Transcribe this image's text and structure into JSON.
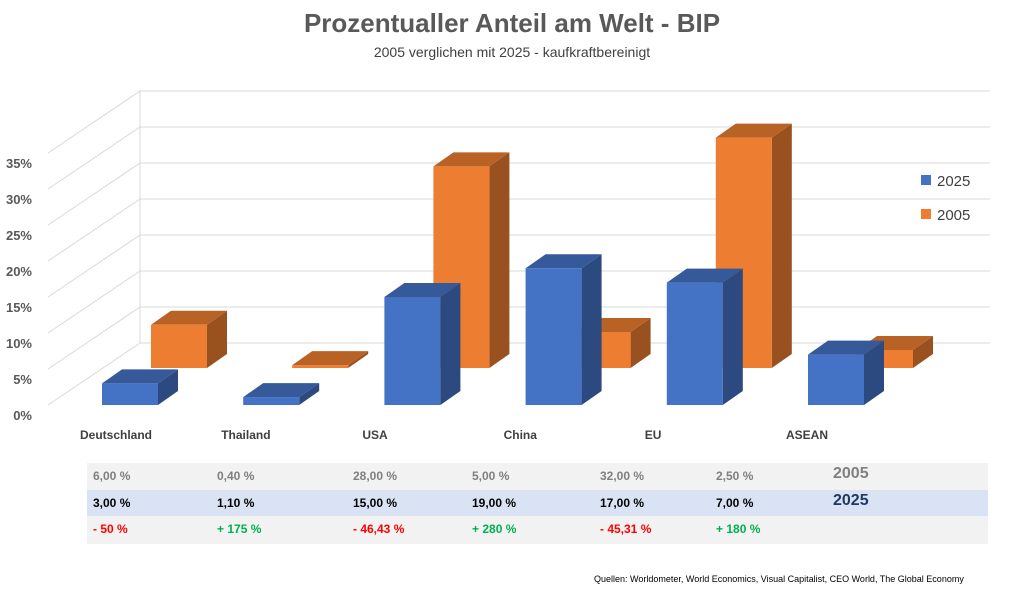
{
  "chart_data": {
    "type": "bar",
    "title": "Prozentualler Anteil am Welt - BIP",
    "subtitle": "2005 verglichen mit 2025 -  kaufkraftbereinigt",
    "categories": [
      "Deutschland",
      "Thailand",
      "USA",
      "China",
      "EU",
      "ASEAN"
    ],
    "series": [
      {
        "name": "2025",
        "color": "#4472C4",
        "values": [
          3.0,
          1.1,
          15.0,
          19.0,
          17.0,
          7.0
        ]
      },
      {
        "name": "2005",
        "color": "#ED7D31",
        "values": [
          6.0,
          0.4,
          28.0,
          5.0,
          32.0,
          2.5
        ]
      }
    ],
    "yticks": [
      "0%",
      "5%",
      "10%",
      "15%",
      "20%",
      "25%",
      "30%",
      "35%"
    ],
    "ylim": [
      0,
      35
    ],
    "grid": true,
    "style": "3d-clustered-depth",
    "legend": "right"
  },
  "table": {
    "row_2005": {
      "label": "2005",
      "values": [
        "6,00 %",
        "0,40 %",
        "28,00 %",
        "5,00 %",
        "32,00 %",
        "2,50 %"
      ]
    },
    "row_2025": {
      "label": "2025",
      "values": [
        "3,00 %",
        "1,10 %",
        "15,00 %",
        "19,00 %",
        "17,00 %",
        "7,00 %"
      ]
    },
    "row_change": {
      "values": [
        "- 50 %",
        "+ 175 %",
        "- 46,43 %",
        "+ 280 %",
        "- 45,31 %",
        "+ 180 %"
      ],
      "signs": [
        "neg",
        "pos",
        "neg",
        "pos",
        "neg",
        "pos"
      ]
    }
  },
  "sources": "Quellen: Worldometer, World Economics, Visual Capitalist, CEO World, The Global Economy"
}
